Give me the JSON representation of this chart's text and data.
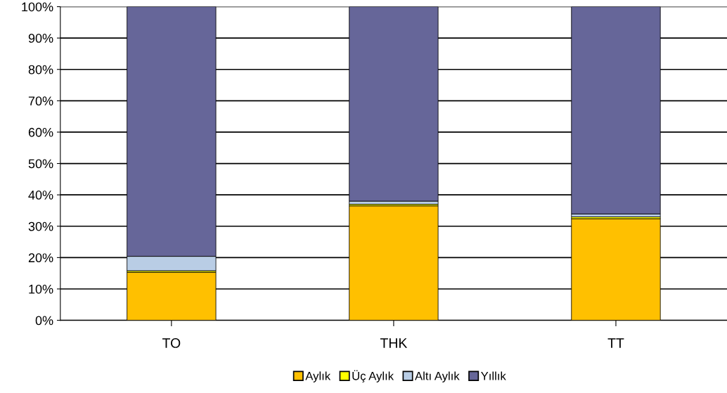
{
  "chart_data": {
    "type": "bar",
    "stacked": true,
    "categories": [
      "TO",
      "THK",
      "TT"
    ],
    "series": [
      {
        "name": "Aylık",
        "color": "#ffc000",
        "values": [
          15.3,
          36.5,
          32.4
        ]
      },
      {
        "name": "Üç Aylık",
        "color": "#ffff00",
        "values": [
          0.5,
          0.5,
          0.6
        ]
      },
      {
        "name": "Altı Aylık",
        "color": "#b9cde5",
        "values": [
          4.6,
          1.0,
          0.9
        ]
      },
      {
        "name": "Yıllık",
        "color": "#666699",
        "values": [
          79.6,
          62.0,
          66.1
        ]
      }
    ],
    "ylim": [
      0,
      100
    ],
    "yticks": [
      {
        "value": 0,
        "label": "0%"
      },
      {
        "value": 10,
        "label": "10%"
      },
      {
        "value": 20,
        "label": "20%"
      },
      {
        "value": 30,
        "label": "30%"
      },
      {
        "value": 40,
        "label": "40%"
      },
      {
        "value": 50,
        "label": "50%"
      },
      {
        "value": 60,
        "label": "60%"
      },
      {
        "value": 70,
        "label": "70%"
      },
      {
        "value": 80,
        "label": "80%"
      },
      {
        "value": 90,
        "label": "90%"
      },
      {
        "value": 100,
        "label": "100%"
      }
    ],
    "grid": "y",
    "legend": "bottom"
  }
}
